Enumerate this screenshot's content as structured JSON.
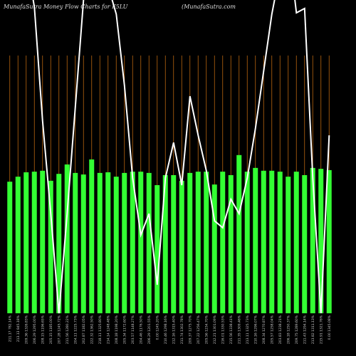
{
  "chart_data": {
    "type": "bar",
    "title": "MunafaSutra  Money Flow  Charts for F5LU",
    "subtitle": "(MunafaSutra.com",
    "categories": [
      "211.17 782.14%",
      "213.13 845.18%",
      "209.36 1326.83%",
      "206.29 1295.00%",
      "208.15 1196.65%",
      "205.15 1185.00%",
      "207.28 1245.72%",
      "211.56 1280.22%",
      "204.11 1225.73%",
      "202.87 1182.05%",
      "222.32 1362.50%",
      "218.11 1325.80%",
      "214.14 1248.48%",
      "208.18 1198.20%",
      "205.34 1172.60%",
      "203.57 1148.27%",
      "204.46 1176.50%",
      "206.29 1201.55%",
      "0.00 1245.20%",
      "210.46 1298.16%",
      "212.16 1315.40%",
      "211.74 1302.78%",
      "209.37 1275.70%",
      "207.22 1256.47%",
      "205.56 1234.70%",
      "212.21 1301.09%",
      "216.01 1330.53%",
      "215.56 1338.41%",
      "211.35 1309.46%",
      "213.11 1325.73%",
      "210.16 1296.07%",
      "208.34 1270.87%",
      "205.57 1258.04%",
      "203.83 1238.21%",
      "206.18 1250.37%",
      "209.75 1289.60%",
      "211.43 1294.14%",
      "213.82 1311.13%",
      "215.91 1321.76%",
      "0.00 1345.08%"
    ],
    "values": [
      42.0,
      43.6,
      45.0,
      45.2,
      45.5,
      42.3,
      44.5,
      47.5,
      44.8,
      44.3,
      49.1,
      44.8,
      45.0,
      43.6,
      44.8,
      45.2,
      45.2,
      44.8,
      40.9,
      44.1,
      44.1,
      42.3,
      44.8,
      45.2,
      45.2,
      41.1,
      45.2,
      44.1,
      50.5,
      45.2,
      46.4,
      45.5,
      45.5,
      45.2,
      43.6,
      45.2,
      44.1,
      46.4,
      46.1,
      45.7
    ],
    "color": "#33ff33",
    "line_values": [
      113.6,
      127.3,
      113.6,
      97.7,
      61.4,
      31.8,
      0,
      31.8,
      65.9,
      100,
      118.2,
      113.6,
      104.5,
      95.5,
      72.7,
      43.2,
      25,
      31.8,
      9.1,
      43.2,
      54.5,
      40.9,
      69.3,
      56.8,
      45.5,
      29.5,
      27.3,
      36.4,
      31.8,
      43.2,
      59.1,
      77.3,
      95.5,
      109.1,
      118.2,
      95.9,
      97.3,
      43.2,
      0,
      56.8
    ],
    "line_color": "#ffffff",
    "ylim": [
      0,
      100
    ],
    "grid_color": "#b8650f"
  }
}
